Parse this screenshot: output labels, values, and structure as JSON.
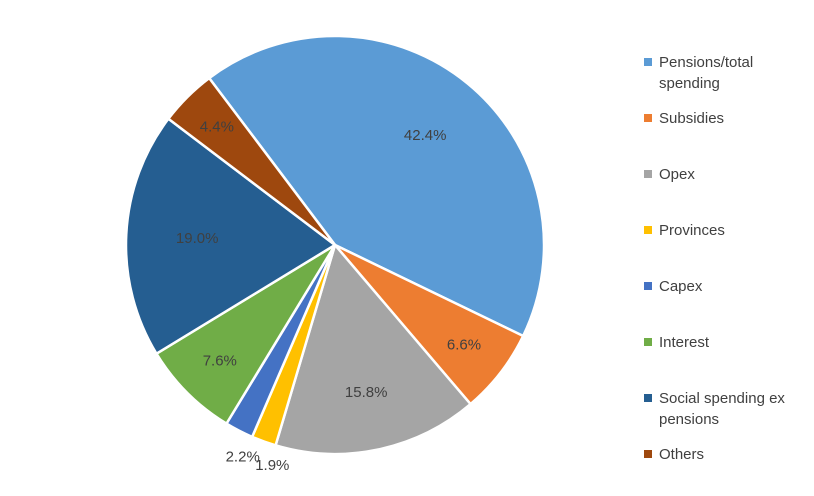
{
  "chart_data": {
    "type": "pie",
    "title": "",
    "legend_position": "right",
    "slices": [
      {
        "name": "Pensions/total spending",
        "value": 42.4,
        "label": "42.4%",
        "color": "#5B9BD5"
      },
      {
        "name": "Subsidies",
        "value": 6.6,
        "label": "6.6%",
        "color": "#ED7D31"
      },
      {
        "name": "Opex",
        "value": 15.8,
        "label": "15.8%",
        "color": "#A5A5A5"
      },
      {
        "name": "Provinces",
        "value": 1.9,
        "label": "1.9%",
        "color": "#FFC000"
      },
      {
        "name": "Capex",
        "value": 2.2,
        "label": "2.2%",
        "color": "#4472C4"
      },
      {
        "name": "Interest",
        "value": 7.6,
        "label": "7.6%",
        "color": "#70AD47"
      },
      {
        "name": "Social spending ex pensions",
        "value": 19.0,
        "label": "19.0%",
        "color": "#255E91"
      },
      {
        "name": "Others",
        "value": 4.4,
        "label": "4.4%",
        "color": "#9E480E"
      }
    ]
  }
}
